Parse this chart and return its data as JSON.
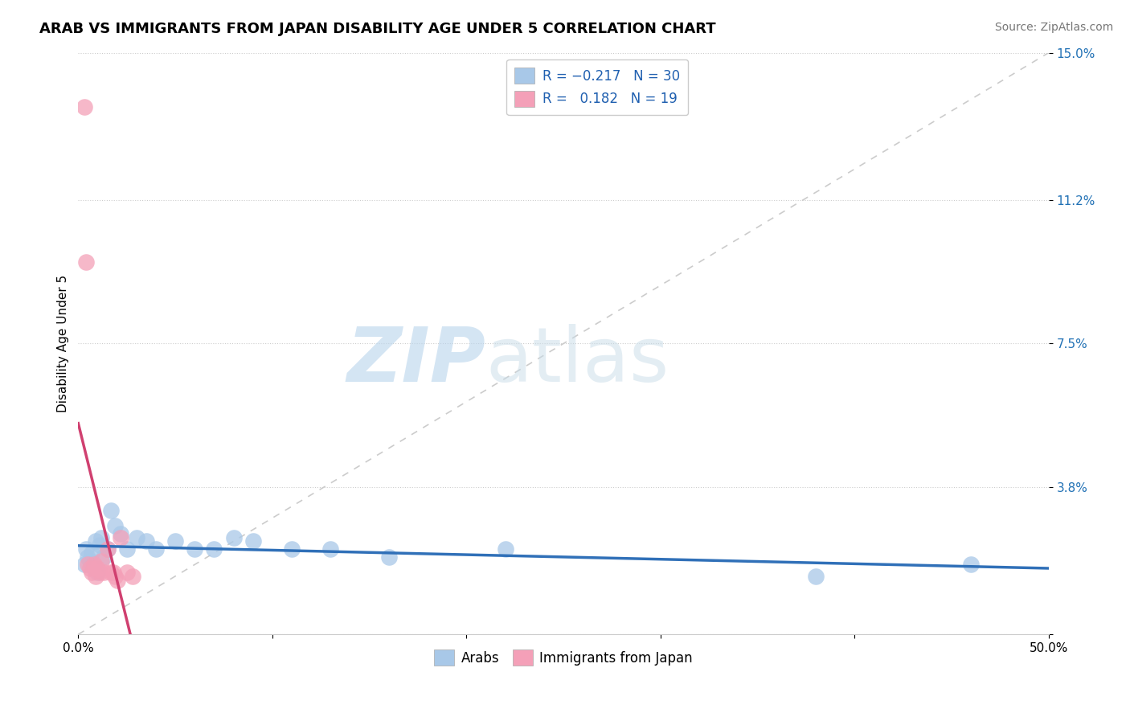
{
  "title": "ARAB VS IMMIGRANTS FROM JAPAN DISABILITY AGE UNDER 5 CORRELATION CHART",
  "source": "Source: ZipAtlas.com",
  "ylabel": "Disability Age Under 5",
  "xlim": [
    0.0,
    0.5
  ],
  "ylim": [
    0.0,
    0.15
  ],
  "xticks": [
    0.0,
    0.1,
    0.2,
    0.3,
    0.4,
    0.5
  ],
  "xtick_labels": [
    "0.0%",
    "",
    "",
    "",
    "",
    "50.0%"
  ],
  "yticks": [
    0.0,
    0.038,
    0.075,
    0.112,
    0.15
  ],
  "ytick_labels": [
    "",
    "3.8%",
    "7.5%",
    "11.2%",
    "15.0%"
  ],
  "legend_entry1": "R = −0.217   N = 30",
  "legend_entry2": "R =   0.182   N = 19",
  "legend_label1": "Arabs",
  "legend_label2": "Immigrants from Japan",
  "blue_color": "#a8c8e8",
  "pink_color": "#f4a0b8",
  "blue_line_color": "#3070b8",
  "pink_line_color": "#d04070",
  "watermark": "ZIPatlas",
  "bg_color": "#ffffff",
  "grid_color": "#cccccc",
  "title_fontsize": 13,
  "axis_label_fontsize": 11,
  "tick_fontsize": 11,
  "source_fontsize": 10,
  "blue_scatter_x": [
    0.003,
    0.004,
    0.005,
    0.006,
    0.007,
    0.008,
    0.009,
    0.01,
    0.011,
    0.012,
    0.013,
    0.015,
    0.017,
    0.019,
    0.022,
    0.025,
    0.03,
    0.035,
    0.04,
    0.05,
    0.06,
    0.07,
    0.08,
    0.09,
    0.11,
    0.13,
    0.16,
    0.22,
    0.38,
    0.46
  ],
  "blue_scatter_y": [
    0.018,
    0.022,
    0.02,
    0.019,
    0.021,
    0.017,
    0.024,
    0.016,
    0.023,
    0.025,
    0.02,
    0.022,
    0.032,
    0.028,
    0.026,
    0.022,
    0.025,
    0.024,
    0.022,
    0.024,
    0.022,
    0.022,
    0.025,
    0.024,
    0.022,
    0.022,
    0.02,
    0.022,
    0.015,
    0.018
  ],
  "pink_scatter_x": [
    0.003,
    0.004,
    0.005,
    0.006,
    0.007,
    0.008,
    0.009,
    0.01,
    0.011,
    0.012,
    0.013,
    0.015,
    0.017,
    0.019,
    0.022,
    0.025,
    0.028,
    0.018,
    0.02
  ],
  "pink_scatter_y": [
    0.136,
    0.096,
    0.018,
    0.017,
    0.016,
    0.018,
    0.015,
    0.017,
    0.016,
    0.019,
    0.016,
    0.022,
    0.016,
    0.015,
    0.025,
    0.016,
    0.015,
    0.016,
    0.014
  ]
}
